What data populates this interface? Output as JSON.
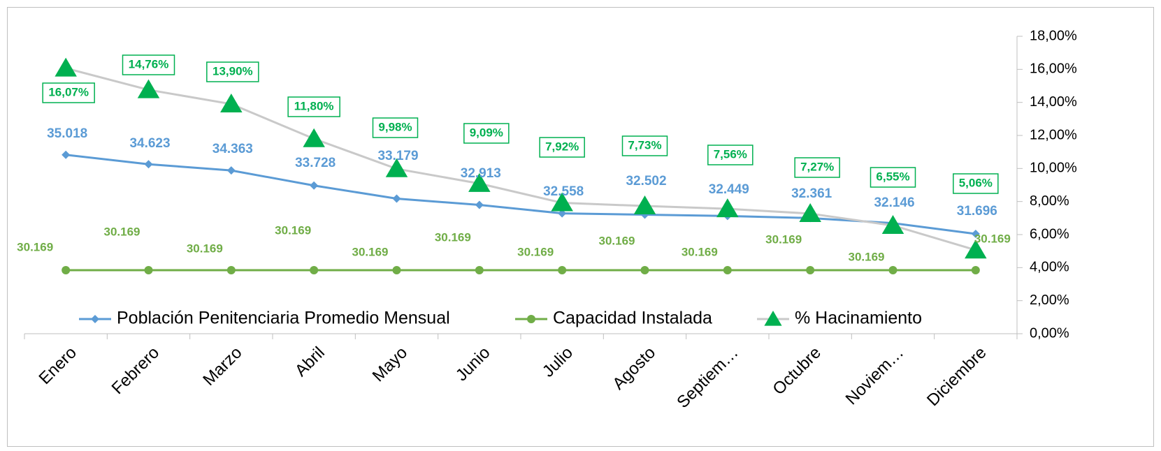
{
  "chart_data": {
    "type": "line",
    "categories": [
      "Enero",
      "Febrero",
      "Marzo",
      "Abril",
      "Mayo",
      "Junio",
      "Julio",
      "Agosto",
      "Septiem…",
      "Octubre",
      "Noviem…",
      "Diciembre"
    ],
    "series": [
      {
        "name": "Población Penitenciaria Promedio Mensual",
        "color": "#5b9bd5",
        "values": [
          35018,
          34623,
          34363,
          33728,
          33179,
          32913,
          32558,
          32502,
          32449,
          32361,
          32146,
          31696
        ],
        "value_labels": [
          "35.018",
          "34.623",
          "34.363",
          "33.728",
          "33.179",
          "32.913",
          "32.558",
          "32.502",
          "32.449",
          "32.361",
          "32.146",
          "31.696"
        ]
      },
      {
        "name": "Capacidad Instalada",
        "color": "#70ad47",
        "values": [
          30169,
          30169,
          30169,
          30169,
          30169,
          30169,
          30169,
          30169,
          30169,
          30169,
          30169,
          30169
        ],
        "value_labels": [
          "30.169",
          "30.169",
          "30.169",
          "30.169",
          "30.169",
          "30.169",
          "30.169",
          "30.169",
          "30.169",
          "30.169",
          "30.169",
          "30.169"
        ]
      },
      {
        "name": "% Hacinamiento",
        "color": "#c9c9c9",
        "marker_color": "#00b050",
        "axis": "y2",
        "values": [
          16.07,
          14.76,
          13.9,
          11.8,
          9.98,
          9.09,
          7.92,
          7.73,
          7.56,
          7.27,
          6.55,
          5.06
        ],
        "value_labels": [
          "16,07%",
          "14,76%",
          "13,90%",
          "11,80%",
          "9,98%",
          "9,09%",
          "7,92%",
          "7,73%",
          "7,56%",
          "7,27%",
          "6,55%",
          "5,06%"
        ]
      }
    ],
    "ylim": [
      27500,
      40000
    ],
    "y2lim": [
      0,
      18
    ],
    "y2ticks": [
      {
        "value": 0,
        "label": "0,00%"
      },
      {
        "value": 2,
        "label": "2,00%"
      },
      {
        "value": 4,
        "label": "4,00%"
      },
      {
        "value": 6,
        "label": "6,00%"
      },
      {
        "value": 8,
        "label": "8,00%"
      },
      {
        "value": 10,
        "label": "10,00%"
      },
      {
        "value": 12,
        "label": "12,00%"
      },
      {
        "value": 14,
        "label": "14,00%"
      },
      {
        "value": 16,
        "label": "16,00%"
      },
      {
        "value": 18,
        "label": "18,00%"
      }
    ]
  }
}
